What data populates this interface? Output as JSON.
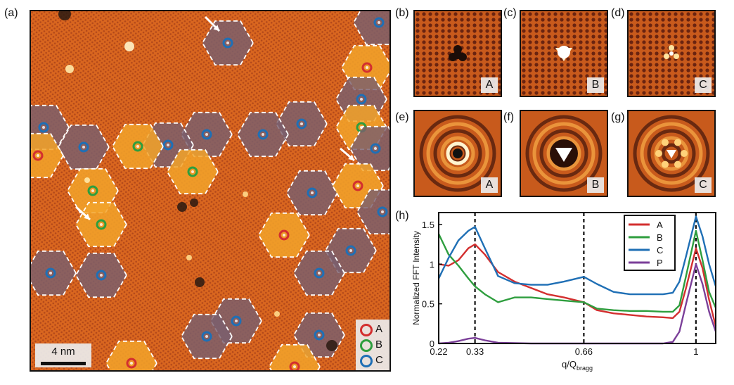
{
  "panel_labels": [
    "(a)",
    "(b)",
    "(c)",
    "(d)",
    "(e)",
    "(f)",
    "(g)",
    "(h)"
  ],
  "map": {
    "scale_bar": "4 nm",
    "legend": [
      {
        "label": "A",
        "color": "#d32f2f"
      },
      {
        "label": "B",
        "color": "#2e9e3e"
      },
      {
        "label": "C",
        "color": "#1f6fb5"
      }
    ]
  },
  "insets": {
    "b": "A",
    "c": "B",
    "d": "C",
    "e": "A",
    "f": "B",
    "g": "C"
  },
  "colors": {
    "map_base": "#d9661f",
    "hex_orange": "#f2a32a",
    "hex_purple": "#7a5f6e",
    "A": "#d32f2f",
    "B": "#2e9e3e",
    "C": "#1f6fb5",
    "P": "#7b3f99"
  },
  "chart_data": {
    "type": "line",
    "xlabel": "q/Q",
    "xlabel_sub": "bragg",
    "ylabel": "Normalized FFT Intensity",
    "xlim": [
      0.22,
      1.06
    ],
    "ylim": [
      0,
      1.65
    ],
    "xticks": [
      0.22,
      0.33,
      0.66,
      1
    ],
    "xtick_labels": [
      "0.22",
      "0.33",
      "0.66",
      "1"
    ],
    "yticks": [
      0,
      0.5,
      1,
      1.5
    ],
    "ytick_labels": [
      "0",
      "0.5",
      "1",
      "1.5"
    ],
    "vlines": [
      0.33,
      0.66,
      1
    ],
    "legend_position": "top-right",
    "series": [
      {
        "name": "A",
        "color": "#d32f2f",
        "x": [
          0.22,
          0.25,
          0.28,
          0.31,
          0.33,
          0.36,
          0.4,
          0.45,
          0.5,
          0.55,
          0.6,
          0.66,
          0.7,
          0.75,
          0.8,
          0.85,
          0.9,
          0.93,
          0.95,
          0.97,
          1.0,
          1.02,
          1.04,
          1.06
        ],
        "y": [
          1.0,
          0.98,
          1.05,
          1.2,
          1.25,
          1.12,
          0.9,
          0.78,
          0.7,
          0.62,
          0.58,
          0.52,
          0.42,
          0.38,
          0.36,
          0.34,
          0.33,
          0.32,
          0.4,
          0.7,
          1.2,
          0.95,
          0.55,
          0.22
        ]
      },
      {
        "name": "B",
        "color": "#2e9e3e",
        "x": [
          0.22,
          0.25,
          0.28,
          0.31,
          0.33,
          0.36,
          0.4,
          0.45,
          0.5,
          0.55,
          0.6,
          0.66,
          0.7,
          0.75,
          0.8,
          0.85,
          0.9,
          0.93,
          0.95,
          0.97,
          1.0,
          1.02,
          1.04,
          1.06
        ],
        "y": [
          1.38,
          1.12,
          0.98,
          0.82,
          0.72,
          0.62,
          0.52,
          0.58,
          0.58,
          0.56,
          0.54,
          0.52,
          0.44,
          0.42,
          0.41,
          0.41,
          0.4,
          0.4,
          0.48,
          0.85,
          1.42,
          1.05,
          0.65,
          0.45
        ]
      },
      {
        "name": "C",
        "color": "#1f6fb5",
        "x": [
          0.22,
          0.25,
          0.28,
          0.31,
          0.33,
          0.36,
          0.4,
          0.45,
          0.5,
          0.55,
          0.6,
          0.66,
          0.7,
          0.75,
          0.8,
          0.85,
          0.9,
          0.93,
          0.95,
          0.97,
          1.0,
          1.02,
          1.04,
          1.06
        ],
        "y": [
          0.82,
          1.08,
          1.3,
          1.42,
          1.47,
          1.2,
          0.85,
          0.76,
          0.74,
          0.74,
          0.78,
          0.84,
          0.75,
          0.65,
          0.62,
          0.62,
          0.62,
          0.64,
          0.78,
          1.1,
          1.6,
          1.35,
          1.0,
          0.72
        ]
      },
      {
        "name": "P",
        "color": "#7b3f99",
        "x": [
          0.22,
          0.25,
          0.28,
          0.31,
          0.33,
          0.36,
          0.4,
          0.5,
          0.6,
          0.66,
          0.7,
          0.8,
          0.9,
          0.93,
          0.95,
          0.97,
          1.0,
          1.02,
          1.04,
          1.06
        ],
        "y": [
          0.0,
          0.01,
          0.03,
          0.06,
          0.07,
          0.04,
          0.01,
          0.0,
          0.0,
          0.0,
          0.0,
          0.0,
          0.0,
          0.02,
          0.15,
          0.5,
          1.0,
          0.75,
          0.4,
          0.15
        ]
      }
    ]
  }
}
